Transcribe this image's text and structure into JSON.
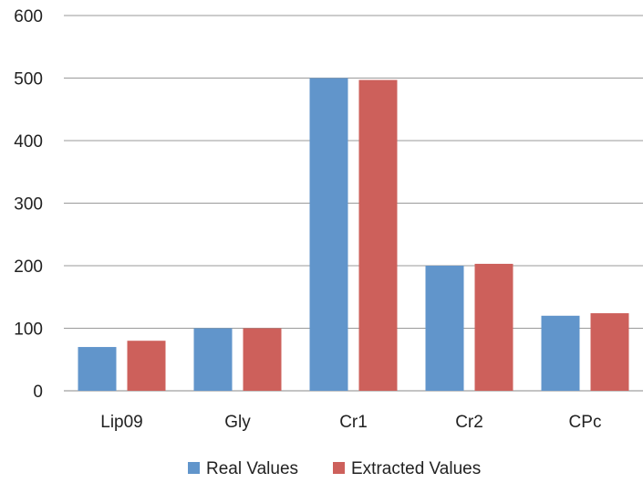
{
  "chart_data": {
    "type": "bar",
    "title": "",
    "xlabel": "",
    "ylabel": "",
    "categories": [
      "Lip09",
      "Gly",
      "Cr1",
      "Cr2",
      "CPc"
    ],
    "series": [
      {
        "name": "Real Values",
        "color": "#6195cb",
        "values": [
          70,
          100,
          500,
          200,
          120
        ]
      },
      {
        "name": "Extracted Values",
        "color": "#cd605b",
        "values": [
          80,
          100,
          497,
          203,
          124
        ]
      }
    ],
    "ylim": [
      0,
      600
    ],
    "yticks": [
      "0",
      "100",
      "200",
      "300",
      "400",
      "500",
      "600"
    ],
    "grid": true,
    "legend_position": "bottom"
  }
}
